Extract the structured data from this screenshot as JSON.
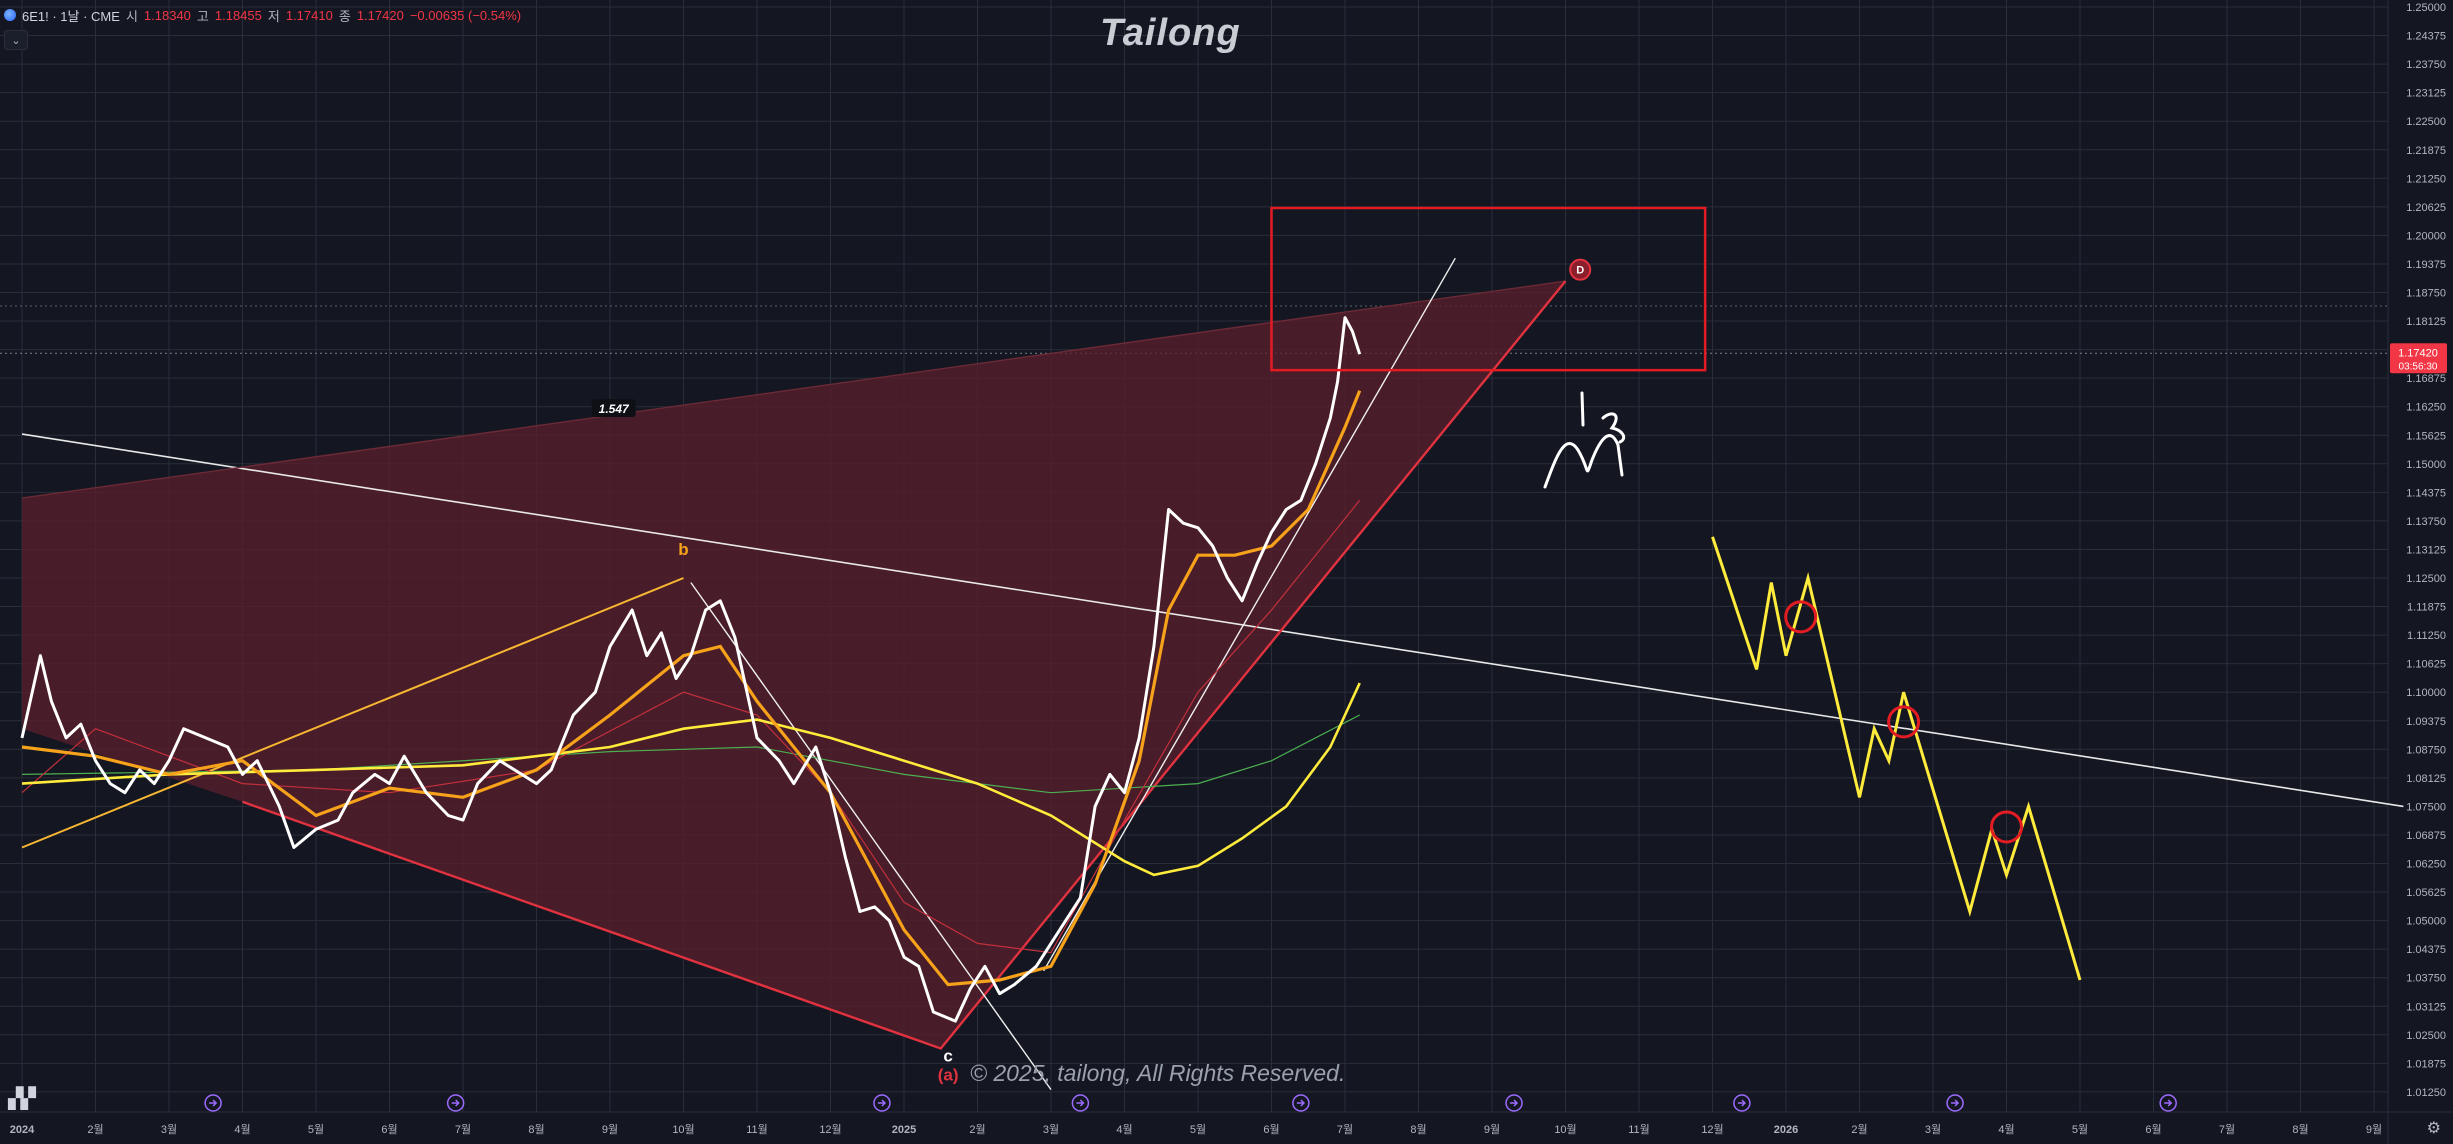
{
  "header": {
    "symbol": "6E1! · 1날 · CME",
    "open_label": "시",
    "open_value": "1.18340",
    "high_label": "고",
    "high_value": "1.18455",
    "low_label": "저",
    "low_value": "1.17410",
    "close_label": "종",
    "close_value": "1.17420",
    "change": "−0.00635 (−0.54%)"
  },
  "watermark": {
    "title": "Tailong",
    "copyright": "© 2025, tailong, All Rights Reserved."
  },
  "price_tag": {
    "price": "1.17420",
    "countdown": "03:56:30"
  },
  "icons": {
    "logo": "tradingview-logo-icon",
    "settings": "gear-icon",
    "collapse": "chevron-down-icon",
    "marker": "arrow-event-icon"
  },
  "colors": {
    "background": "#141722",
    "grid": "#2a2e39",
    "price_line": "#ffffff",
    "ma_orange": "#f7a21b",
    "ma_yellow": "#ffeb3b",
    "pattern_red": "#e0323f",
    "pattern_fill": "#5a1f2b",
    "projection": "#ffeb3b",
    "target_box": "#e31b23",
    "last_price_bg": "#f23645"
  },
  "chart_data": {
    "type": "line",
    "title": "",
    "ylim": [
      1.0125,
      1.25
    ],
    "yticks": [
      "1.25000",
      "1.24375",
      "1.23750",
      "1.23125",
      "1.22500",
      "1.21875",
      "1.21250",
      "1.20625",
      "1.20000",
      "1.19375",
      "1.18750",
      "1.18125",
      "1.17500",
      "1.16875",
      "1.16250",
      "1.15625",
      "1.15000",
      "1.14375",
      "1.13750",
      "1.13125",
      "1.12500",
      "1.11875",
      "1.11250",
      "1.10625",
      "1.10000",
      "1.09375",
      "1.08750",
      "1.08125",
      "1.07500",
      "1.06875",
      "1.06250",
      "1.05625",
      "1.05000",
      "1.04375",
      "1.03750",
      "1.03125",
      "1.02500",
      "1.01875",
      "1.01250"
    ],
    "xticks": [
      {
        "label": "2024",
        "t": 0
      },
      {
        "label": "2월",
        "t": 1
      },
      {
        "label": "3월",
        "t": 2
      },
      {
        "label": "4월",
        "t": 3
      },
      {
        "label": "5월",
        "t": 4
      },
      {
        "label": "6월",
        "t": 5
      },
      {
        "label": "7월",
        "t": 6
      },
      {
        "label": "8월",
        "t": 7
      },
      {
        "label": "9월",
        "t": 8
      },
      {
        "label": "10월",
        "t": 9
      },
      {
        "label": "11월",
        "t": 10
      },
      {
        "label": "12월",
        "t": 11
      },
      {
        "label": "2025",
        "t": 12
      },
      {
        "label": "2월",
        "t": 13
      },
      {
        "label": "3월",
        "t": 14
      },
      {
        "label": "4월",
        "t": 15
      },
      {
        "label": "5월",
        "t": 16
      },
      {
        "label": "6월",
        "t": 17
      },
      {
        "label": "7월",
        "t": 18
      },
      {
        "label": "8월",
        "t": 19
      },
      {
        "label": "9월",
        "t": 20
      },
      {
        "label": "10월",
        "t": 21
      },
      {
        "label": "11월",
        "t": 22
      },
      {
        "label": "12월",
        "t": 23
      },
      {
        "label": "2026",
        "t": 24
      },
      {
        "label": "2월",
        "t": 25
      },
      {
        "label": "3월",
        "t": 26
      },
      {
        "label": "4월",
        "t": 27
      },
      {
        "label": "5월",
        "t": 28
      },
      {
        "label": "6월",
        "t": 29
      },
      {
        "label": "7월",
        "t": 30
      },
      {
        "label": "8월",
        "t": 31
      },
      {
        "label": "9월",
        "t": 32
      }
    ],
    "price_series": {
      "name": "",
      "points": [
        [
          0,
          1.09
        ],
        [
          0.25,
          1.108
        ],
        [
          0.4,
          1.098
        ],
        [
          0.6,
          1.09
        ],
        [
          0.8,
          1.093
        ],
        [
          1.0,
          1.085
        ],
        [
          1.2,
          1.08
        ],
        [
          1.4,
          1.078
        ],
        [
          1.6,
          1.083
        ],
        [
          1.8,
          1.08
        ],
        [
          2.0,
          1.085
        ],
        [
          2.2,
          1.092
        ],
        [
          2.5,
          1.09
        ],
        [
          2.8,
          1.088
        ],
        [
          3.0,
          1.082
        ],
        [
          3.2,
          1.085
        ],
        [
          3.5,
          1.075
        ],
        [
          3.7,
          1.066
        ],
        [
          4.0,
          1.07
        ],
        [
          4.3,
          1.072
        ],
        [
          4.5,
          1.078
        ],
        [
          4.8,
          1.082
        ],
        [
          5.0,
          1.08
        ],
        [
          5.2,
          1.086
        ],
        [
          5.5,
          1.078
        ],
        [
          5.8,
          1.073
        ],
        [
          6.0,
          1.072
        ],
        [
          6.2,
          1.08
        ],
        [
          6.5,
          1.085
        ],
        [
          6.8,
          1.082
        ],
        [
          7.0,
          1.08
        ],
        [
          7.2,
          1.083
        ],
        [
          7.5,
          1.095
        ],
        [
          7.8,
          1.1
        ],
        [
          8.0,
          1.11
        ],
        [
          8.3,
          1.118
        ],
        [
          8.5,
          1.108
        ],
        [
          8.7,
          1.113
        ],
        [
          8.9,
          1.103
        ],
        [
          9.1,
          1.108
        ],
        [
          9.3,
          1.118
        ],
        [
          9.5,
          1.12
        ],
        [
          9.7,
          1.112
        ],
        [
          10.0,
          1.09
        ],
        [
          10.3,
          1.085
        ],
        [
          10.5,
          1.08
        ],
        [
          10.8,
          1.088
        ],
        [
          11.0,
          1.078
        ],
        [
          11.2,
          1.064
        ],
        [
          11.4,
          1.052
        ],
        [
          11.6,
          1.053
        ],
        [
          11.8,
          1.05
        ],
        [
          12.0,
          1.042
        ],
        [
          12.2,
          1.04
        ],
        [
          12.4,
          1.03
        ],
        [
          12.7,
          1.028
        ],
        [
          12.9,
          1.035
        ],
        [
          13.1,
          1.04
        ],
        [
          13.3,
          1.034
        ],
        [
          13.5,
          1.036
        ],
        [
          13.8,
          1.04
        ],
        [
          14.0,
          1.045
        ],
        [
          14.2,
          1.05
        ],
        [
          14.4,
          1.055
        ],
        [
          14.6,
          1.075
        ],
        [
          14.8,
          1.082
        ],
        [
          15.0,
          1.078
        ],
        [
          15.2,
          1.09
        ],
        [
          15.4,
          1.11
        ],
        [
          15.6,
          1.14
        ],
        [
          15.8,
          1.137
        ],
        [
          16.0,
          1.136
        ],
        [
          16.2,
          1.132
        ],
        [
          16.4,
          1.125
        ],
        [
          16.6,
          1.12
        ],
        [
          16.8,
          1.128
        ],
        [
          17.0,
          1.135
        ],
        [
          17.2,
          1.14
        ],
        [
          17.4,
          1.142
        ],
        [
          17.6,
          1.15
        ],
        [
          17.8,
          1.16
        ],
        [
          17.9,
          1.168
        ],
        [
          18.0,
          1.182
        ],
        [
          18.1,
          1.179
        ],
        [
          18.2,
          1.174
        ]
      ]
    },
    "ma_orange": [
      [
        0,
        1.088
      ],
      [
        1.0,
        1.086
      ],
      [
        2.0,
        1.082
      ],
      [
        3.0,
        1.085
      ],
      [
        4.0,
        1.073
      ],
      [
        5.0,
        1.079
      ],
      [
        6.0,
        1.077
      ],
      [
        7.0,
        1.083
      ],
      [
        8.0,
        1.095
      ],
      [
        9.0,
        1.108
      ],
      [
        9.5,
        1.11
      ],
      [
        10.0,
        1.098
      ],
      [
        11.0,
        1.078
      ],
      [
        12.0,
        1.048
      ],
      [
        12.6,
        1.036
      ],
      [
        13.3,
        1.037
      ],
      [
        14.0,
        1.04
      ],
      [
        14.6,
        1.058
      ],
      [
        15.2,
        1.085
      ],
      [
        15.6,
        1.118
      ],
      [
        16.0,
        1.13
      ],
      [
        16.5,
        1.13
      ],
      [
        17.0,
        1.132
      ],
      [
        17.5,
        1.14
      ],
      [
        18.0,
        1.158
      ],
      [
        18.2,
        1.166
      ]
    ],
    "ma_yellow": [
      [
        0,
        1.08
      ],
      [
        2.0,
        1.082
      ],
      [
        4.0,
        1.083
      ],
      [
        6.0,
        1.084
      ],
      [
        8.0,
        1.088
      ],
      [
        9.0,
        1.092
      ],
      [
        10.0,
        1.094
      ],
      [
        11.0,
        1.09
      ],
      [
        12.0,
        1.085
      ],
      [
        13.0,
        1.08
      ],
      [
        14.0,
        1.073
      ],
      [
        15.0,
        1.063
      ],
      [
        15.4,
        1.06
      ],
      [
        16.0,
        1.062
      ],
      [
        16.6,
        1.068
      ],
      [
        17.2,
        1.075
      ],
      [
        17.8,
        1.088
      ],
      [
        18.2,
        1.102
      ]
    ],
    "ma_green": [
      [
        0,
        1.082
      ],
      [
        4.0,
        1.083
      ],
      [
        8.0,
        1.087
      ],
      [
        10.0,
        1.088
      ],
      [
        12.0,
        1.082
      ],
      [
        14.0,
        1.078
      ],
      [
        16.0,
        1.08
      ],
      [
        17.0,
        1.085
      ],
      [
        18.2,
        1.095
      ]
    ],
    "ma_red_thin": [
      [
        0,
        1.078
      ],
      [
        1.0,
        1.092
      ],
      [
        3.0,
        1.08
      ],
      [
        5.0,
        1.078
      ],
      [
        7.0,
        1.083
      ],
      [
        9.0,
        1.1
      ],
      [
        10.0,
        1.095
      ],
      [
        11.0,
        1.078
      ],
      [
        12.0,
        1.054
      ],
      [
        13.0,
        1.045
      ],
      [
        14.0,
        1.043
      ],
      [
        15.0,
        1.072
      ],
      [
        16.0,
        1.1
      ],
      [
        17.0,
        1.118
      ],
      [
        18.2,
        1.142
      ]
    ],
    "pattern_upper": [
      [
        0,
        1.1425
      ],
      [
        21.0,
        1.19
      ]
    ],
    "pattern_lower": [
      [
        3.0,
        1.076
      ],
      [
        12.5,
        1.022
      ],
      [
        21.0,
        1.19
      ]
    ],
    "pattern_fill": [
      [
        0,
        1.1425
      ],
      [
        21.0,
        1.19
      ],
      [
        12.5,
        1.022
      ],
      [
        3.0,
        1.076
      ],
      [
        0,
        1.092
      ]
    ],
    "wedge_line": [
      [
        0,
        1.066
      ],
      [
        9.0,
        1.125
      ]
    ],
    "b_to_c_line": [
      [
        9.1,
        1.124
      ],
      [
        14.0,
        1.013
      ]
    ],
    "trend_fan_line": [
      [
        13.9,
        1.039
      ],
      [
        19.5,
        1.195
      ]
    ],
    "long_trend_line": [
      [
        0,
        1.1565
      ],
      [
        32.4,
        1.075
      ]
    ],
    "target_box": {
      "t0": 17.0,
      "t1": 22.9,
      "y0": 1.1705,
      "y1": 1.206
    },
    "labels": [
      {
        "text": "b",
        "t": 9.0,
        "y": 1.13,
        "color": "#f7a21b"
      },
      {
        "text": "c",
        "t": 12.6,
        "y": 1.0192,
        "color": "#ffffff"
      },
      {
        "text": "(a)",
        "t": 12.6,
        "y": 1.015,
        "color": "#e0323f"
      },
      {
        "text": "D",
        "t": 21.2,
        "y": 1.1925,
        "color": "#ffffff"
      },
      {
        "text": "1.547",
        "t": 8.05,
        "y": 1.162,
        "color": "#ffffff"
      }
    ],
    "projection": [
      [
        23.0,
        1.134
      ],
      [
        23.6,
        1.105
      ],
      [
        23.8,
        1.124
      ],
      [
        24.0,
        1.108
      ],
      [
        24.3,
        1.125
      ],
      [
        25.0,
        1.077
      ],
      [
        25.2,
        1.092
      ],
      [
        25.4,
        1.085
      ],
      [
        25.6,
        1.1
      ],
      [
        26.5,
        1.052
      ],
      [
        26.8,
        1.07
      ],
      [
        27.0,
        1.06
      ],
      [
        27.3,
        1.075
      ],
      [
        28.0,
        1.037
      ]
    ],
    "projection_circles": [
      [
        24.2,
        1.1165
      ],
      [
        25.6,
        1.0935
      ],
      [
        27.0,
        1.0705
      ]
    ],
    "event_markers": [
      2.6,
      5.9,
      11.7,
      14.4,
      17.4,
      20.3,
      23.4,
      26.3,
      29.2
    ],
    "last_price": 1.1742
  }
}
